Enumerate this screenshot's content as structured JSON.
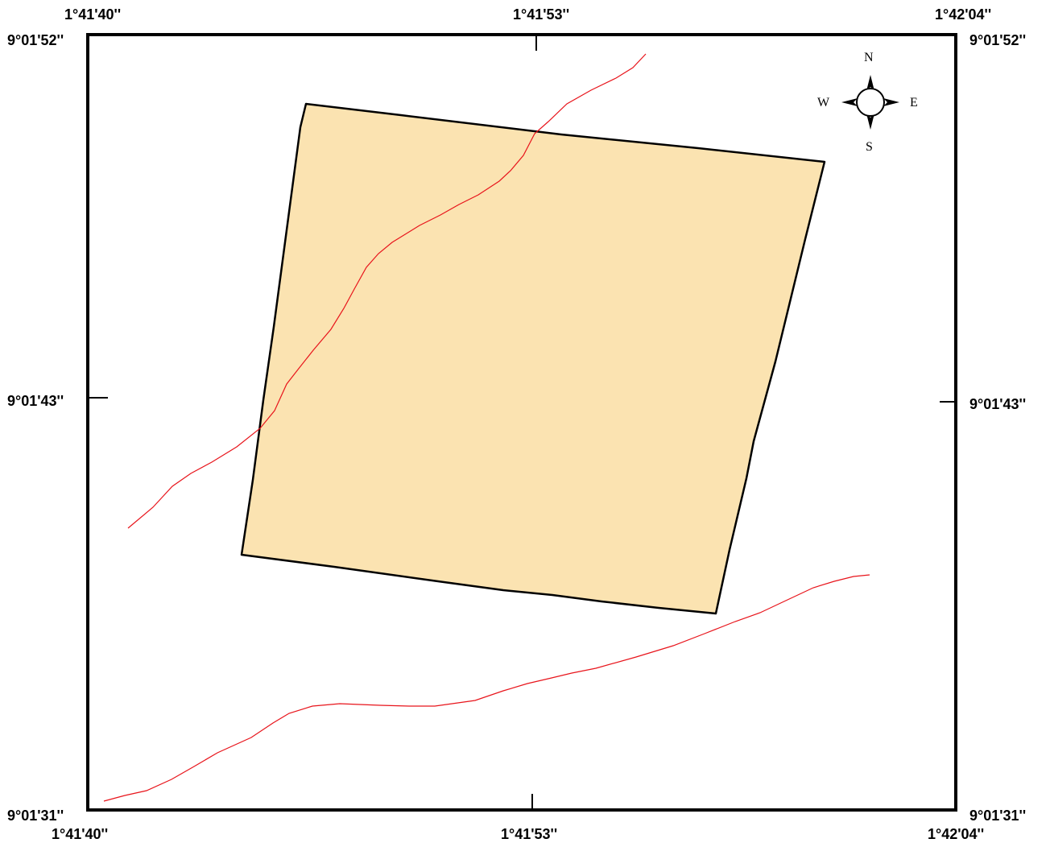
{
  "map": {
    "coords": {
      "top_left_lon": "1°41'40''",
      "top_center_lon": "1°41'53''",
      "top_right_lon": "1°42'04''",
      "bottom_left_lon": "1°41'40''",
      "bottom_center_lon": "1°41'53''",
      "bottom_right_lon": "1°42'04''",
      "left_top_lat": "9°01'52''",
      "left_mid_lat": "9°01'43''",
      "left_bottom_lat": "9°01'31''",
      "right_top_lat": "9°01'52''",
      "right_mid_lat": "9°01'43''",
      "right_bottom_lat": "9°01'31''"
    },
    "compass": {
      "north": "N",
      "south": "S",
      "east": "E",
      "west": "W"
    },
    "colors": {
      "parcel_fill": "#fbe3b1",
      "parcel_stroke": "#000000",
      "road_stroke": "#e8141b",
      "frame_stroke": "#000000"
    }
  }
}
